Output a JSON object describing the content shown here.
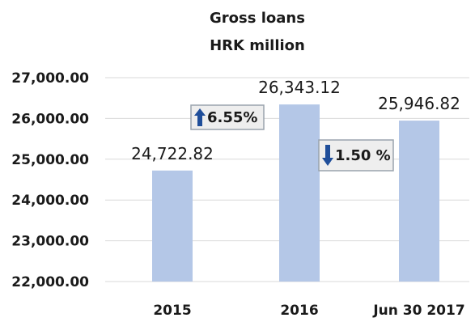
{
  "chart_data": {
    "type": "bar",
    "title": "Gross loans",
    "subtitle": "HRK million",
    "categories": [
      "2015",
      "2016",
      "Jun 30 2017"
    ],
    "values": [
      24722.82,
      26343.12,
      25946.82
    ],
    "value_labels": [
      "24,722.82",
      "26,343.12",
      "25,946.82"
    ],
    "ylim": [
      22000,
      27000
    ],
    "yticks": [
      "22,000.00",
      "23,000.00",
      "24,000.00",
      "25,000.00",
      "26,000.00",
      "27,000.00"
    ],
    "ytick_values": [
      22000,
      23000,
      24000,
      25000,
      26000,
      27000
    ],
    "grid": true,
    "bar_color": "#b4c7e7",
    "annotations": [
      {
        "text": "6.55%",
        "direction": "up",
        "between": [
          "2015",
          "2016"
        ],
        "color": "#1f4e9a"
      },
      {
        "text": "1.50 %",
        "direction": "down",
        "between": [
          "2016",
          "Jun 30 2017"
        ],
        "color": "#1f4e9a"
      }
    ]
  }
}
